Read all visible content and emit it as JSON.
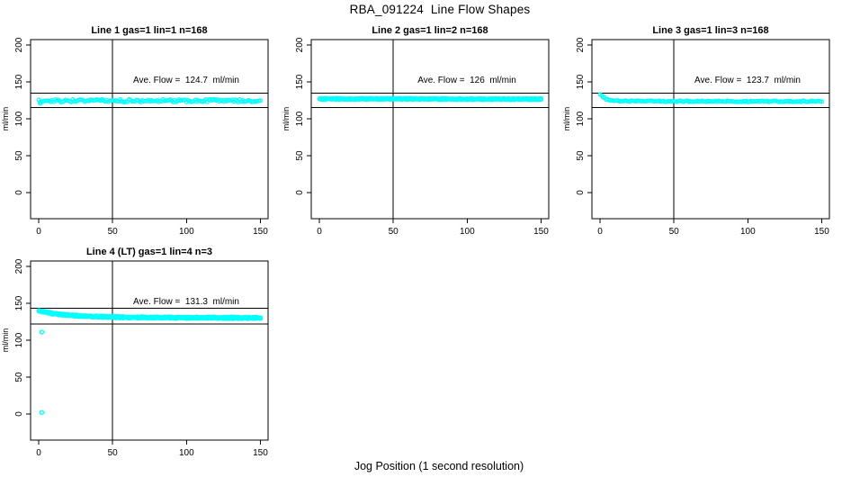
{
  "figure": {
    "title": "RBA_091224  Line Flow Shapes",
    "xlabel": "Jog Position (1 second resolution)",
    "colors": {
      "point": "#00ffff",
      "axis": "#000000",
      "background": "#ffffff",
      "text": "#000000"
    }
  },
  "chart_data": [
    {
      "type": "scatter",
      "title": "Line 1 gas=1 lin=1 n=168",
      "annotation": "Ave. Flow =  124.7  ml/min",
      "ave_flow": 124.7,
      "n": 168,
      "ylabel": "ml/min",
      "x_ticks": [
        0,
        50,
        100,
        150
      ],
      "y_ticks": [
        0,
        50,
        100,
        150,
        200
      ],
      "xlim": [
        -5,
        155
      ],
      "ylim": [
        -35,
        207
      ],
      "vline_x": 50,
      "hlines": [
        135,
        115
      ],
      "x_range": [
        0,
        150
      ],
      "profile": [
        [
          0,
          124.4
        ],
        [
          150,
          124.4
        ]
      ],
      "noise": 2.0,
      "traces": 1,
      "trace_offset": 0,
      "outliers": [
        [
          1,
          121.3
        ]
      ],
      "seed": 7,
      "marker": "open-circle"
    },
    {
      "type": "scatter",
      "title": "Line 2 gas=1 lin=2 n=168",
      "annotation": "Ave. Flow =  126  ml/min",
      "ave_flow": 126,
      "n": 168,
      "ylabel": "ml/min",
      "x_ticks": [
        0,
        50,
        100,
        150
      ],
      "y_ticks": [
        0,
        50,
        100,
        150,
        200
      ],
      "xlim": [
        -5,
        155
      ],
      "ylim": [
        -35,
        207
      ],
      "vline_x": 50,
      "hlines": [
        135,
        115
      ],
      "x_range": [
        0,
        150
      ],
      "profile": [
        [
          0,
          127.0
        ],
        [
          150,
          126.6
        ]
      ],
      "noise": 0.5,
      "traces": 2,
      "trace_offset": 1.1,
      "outliers": [],
      "seed": 11,
      "marker": "open-circle"
    },
    {
      "type": "scatter",
      "title": "Line 3 gas=1 lin=3 n=168",
      "annotation": "Ave. Flow =  123.7  ml/min",
      "ave_flow": 123.7,
      "n": 168,
      "ylabel": "ml/min",
      "x_ticks": [
        0,
        50,
        100,
        150
      ],
      "y_ticks": [
        0,
        50,
        100,
        150,
        200
      ],
      "xlim": [
        -5,
        155
      ],
      "ylim": [
        -35,
        207
      ],
      "vline_x": 50,
      "hlines": [
        135,
        115
      ],
      "x_range": [
        0,
        150
      ],
      "profile": [
        [
          0,
          133.2
        ],
        [
          2,
          129.5
        ],
        [
          4,
          127.0
        ],
        [
          7,
          125.3
        ],
        [
          12,
          124.3
        ],
        [
          20,
          123.8
        ],
        [
          60,
          123.7
        ],
        [
          150,
          123.4
        ]
      ],
      "noise": 0.9,
      "traces": 1,
      "trace_offset": 0,
      "outliers": [],
      "seed": 13,
      "marker": "open-circle"
    },
    {
      "type": "scatter",
      "title": "Line 4 (LT) gas=1 lin=4 n=3",
      "annotation": "Ave. Flow =  131.3  ml/min",
      "ave_flow": 131.3,
      "n": 3,
      "ylabel": "ml/min",
      "x_ticks": [
        0,
        50,
        100,
        150
      ],
      "y_ticks": [
        0,
        50,
        100,
        150,
        200
      ],
      "xlim": [
        -5,
        155
      ],
      "ylim": [
        -35,
        207
      ],
      "vline_x": 50,
      "hlines": [
        143,
        122
      ],
      "x_range": [
        0,
        150
      ],
      "profile": [
        [
          0,
          140.0
        ],
        [
          4,
          138.2
        ],
        [
          9,
          136.3
        ],
        [
          15,
          134.8
        ],
        [
          22,
          133.6
        ],
        [
          30,
          132.6
        ],
        [
          40,
          131.8
        ],
        [
          55,
          131.1
        ],
        [
          75,
          130.7
        ],
        [
          110,
          130.4
        ],
        [
          150,
          130.2
        ]
      ],
      "noise": 0.55,
      "traces": 3,
      "trace_offset": 0.85,
      "outliers": [
        [
          2,
          111
        ],
        [
          2,
          2
        ]
      ],
      "seed": 17,
      "marker": "open-circle"
    }
  ]
}
